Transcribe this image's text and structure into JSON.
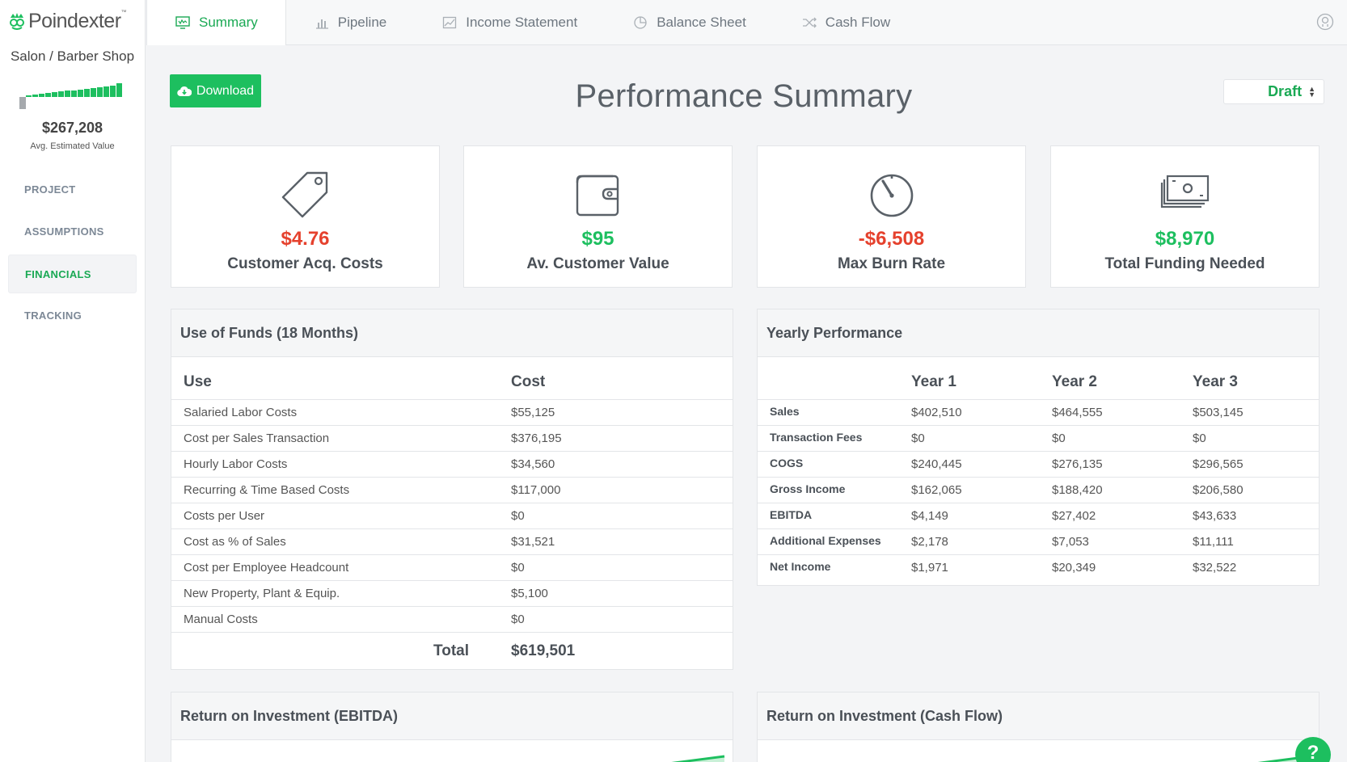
{
  "brand": {
    "name": "Poindexter",
    "tm": "™"
  },
  "sidebar": {
    "project_name": "Salon / Barber Shop",
    "avg_value": "$267,208",
    "avg_label": "Avg. Estimated Value",
    "trend_values": [
      -0.9,
      0.05,
      0.15,
      0.25,
      0.3,
      0.35,
      0.4,
      0.45,
      0.5,
      0.55,
      0.6,
      0.65,
      0.7,
      0.75,
      0.85,
      1.0
    ],
    "nav": [
      {
        "label": "PROJECT"
      },
      {
        "label": "ASSUMPTIONS"
      },
      {
        "label": "FINANCIALS",
        "active": true
      },
      {
        "label": "TRACKING"
      }
    ]
  },
  "tabs": [
    {
      "label": "Summary",
      "icon": "summary-icon",
      "active": true
    },
    {
      "label": "Pipeline",
      "icon": "bar-chart-icon"
    },
    {
      "label": "Income Statement",
      "icon": "line-chart-icon"
    },
    {
      "label": "Balance Sheet",
      "icon": "pie-chart-icon"
    },
    {
      "label": "Cash Flow",
      "icon": "shuffle-icon"
    }
  ],
  "toolbar": {
    "download_label": "Download",
    "status": "Draft"
  },
  "page_title": "Performance Summary",
  "kpis": [
    {
      "value": "$4.76",
      "label": "Customer Acq. Costs",
      "icon": "tag-icon",
      "color": "#e5412d"
    },
    {
      "value": "$95",
      "label": "Av. Customer Value",
      "icon": "wallet-icon",
      "color": "#1dbf5f"
    },
    {
      "value": "-$6,508",
      "label": "Max Burn Rate",
      "icon": "gauge-icon",
      "color": "#e5412d"
    },
    {
      "value": "$8,970",
      "label": "Total Funding Needed",
      "icon": "money-icon",
      "color": "#1dbf5f"
    }
  ],
  "use_of_funds": {
    "title": "Use of Funds (18 Months)",
    "headers": [
      "Use",
      "Cost"
    ],
    "rows": [
      [
        "Salaried Labor Costs",
        "$55,125"
      ],
      [
        "Cost per Sales Transaction",
        "$376,195"
      ],
      [
        "Hourly Labor Costs",
        "$34,560"
      ],
      [
        "Recurring & Time Based Costs",
        "$117,000"
      ],
      [
        "Costs per User",
        "$0"
      ],
      [
        "Cost as % of Sales",
        "$31,521"
      ],
      [
        "Cost per Employee Headcount",
        "$0"
      ],
      [
        "New Property, Plant & Equip.",
        "$5,100"
      ],
      [
        "Manual Costs",
        "$0"
      ]
    ],
    "total_label": "Total",
    "total_value": "$619,501"
  },
  "yearly": {
    "title": "Yearly Performance",
    "headers": [
      "",
      "Year 1",
      "Year 2",
      "Year 3"
    ],
    "rows": [
      [
        "Sales",
        "$402,510",
        "$464,555",
        "$503,145"
      ],
      [
        "Transaction Fees",
        "$0",
        "$0",
        "$0"
      ],
      [
        "COGS",
        "$240,445",
        "$276,135",
        "$296,565"
      ],
      [
        "Gross Income",
        "$162,065",
        "$188,420",
        "$206,580"
      ],
      [
        "EBITDA",
        "$4,149",
        "$27,402",
        "$43,633"
      ],
      [
        "Additional Expenses",
        "$2,178",
        "$7,053",
        "$11,111"
      ],
      [
        "Net Income",
        "$1,971",
        "$20,349",
        "$32,522"
      ]
    ]
  },
  "roi": {
    "ebitda_title": "Return on Investment (EBITDA)",
    "cashflow_title": "Return on Investment (Cash Flow)"
  },
  "help": {
    "label": "?"
  }
}
